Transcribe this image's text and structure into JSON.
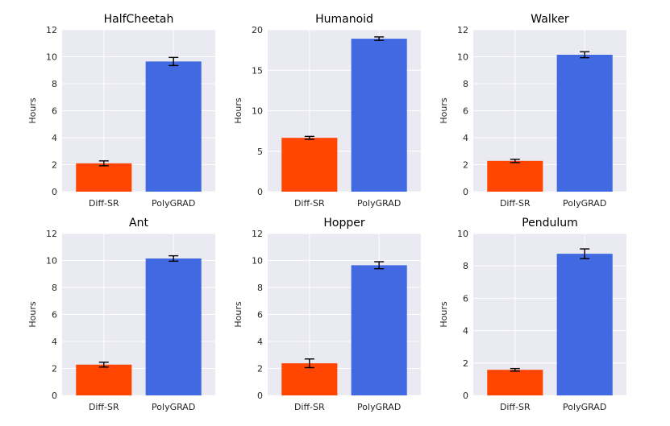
{
  "chart_data": [
    {
      "type": "bar",
      "title": "HalfCheetah",
      "ylabel": "Hours",
      "xlabel": "",
      "categories": [
        "Diff-SR",
        "PolyGRAD"
      ],
      "values": [
        2.1,
        9.65
      ],
      "errors": [
        0.18,
        0.3
      ],
      "ylim": [
        0,
        12
      ],
      "yticks": [
        0,
        2,
        4,
        6,
        8,
        10,
        12
      ],
      "ytick_labels": [
        "0",
        "2",
        "4",
        "6",
        "8",
        "10",
        "12"
      ]
    },
    {
      "type": "bar",
      "title": "Humanoid",
      "ylabel": "Hours",
      "xlabel": "",
      "categories": [
        "Diff-SR",
        "PolyGRAD"
      ],
      "values": [
        6.65,
        18.9
      ],
      "errors": [
        0.18,
        0.22
      ],
      "ylim": [
        0,
        20
      ],
      "yticks": [
        0,
        5,
        10,
        15,
        20
      ],
      "ytick_labels": [
        "0",
        "5",
        "10",
        "15",
        "20"
      ]
    },
    {
      "type": "bar",
      "title": "Walker",
      "ylabel": "Hours",
      "xlabel": "",
      "categories": [
        "Diff-SR",
        "PolyGRAD"
      ],
      "values": [
        2.28,
        10.15
      ],
      "errors": [
        0.12,
        0.22
      ],
      "ylim": [
        0,
        12
      ],
      "yticks": [
        0,
        2,
        4,
        6,
        8,
        10,
        12
      ],
      "ytick_labels": [
        "0",
        "2",
        "4",
        "6",
        "8",
        "10",
        "12"
      ]
    },
    {
      "type": "bar",
      "title": "Ant",
      "ylabel": "Hours",
      "xlabel": "",
      "categories": [
        "Diff-SR",
        "PolyGRAD"
      ],
      "values": [
        2.28,
        10.15
      ],
      "errors": [
        0.18,
        0.2
      ],
      "ylim": [
        0,
        12
      ],
      "yticks": [
        0,
        2,
        4,
        6,
        8,
        10,
        12
      ],
      "ytick_labels": [
        "0",
        "2",
        "4",
        "6",
        "8",
        "10",
        "12"
      ]
    },
    {
      "type": "bar",
      "title": "Hopper",
      "ylabel": "Hours",
      "xlabel": "",
      "categories": [
        "Diff-SR",
        "PolyGRAD"
      ],
      "values": [
        2.38,
        9.65
      ],
      "errors": [
        0.32,
        0.26
      ],
      "ylim": [
        0,
        12
      ],
      "yticks": [
        0,
        2,
        4,
        6,
        8,
        10,
        12
      ],
      "ytick_labels": [
        "0",
        "2",
        "4",
        "6",
        "8",
        "10",
        "12"
      ]
    },
    {
      "type": "bar",
      "title": "Pendulum",
      "ylabel": "Hours",
      "xlabel": "",
      "categories": [
        "Diff-SR",
        "PolyGRAD"
      ],
      "values": [
        1.58,
        8.75
      ],
      "errors": [
        0.08,
        0.3
      ],
      "ylim": [
        0,
        10
      ],
      "yticks": [
        0,
        2,
        4,
        6,
        8,
        10
      ],
      "ytick_labels": [
        "0",
        "2",
        "4",
        "6",
        "8",
        "10"
      ]
    }
  ],
  "colors": {
    "diff_sr": "#ff4500",
    "polygrad": "#4169e1",
    "background": "#eaeaf2",
    "grid": "#ffffff"
  }
}
